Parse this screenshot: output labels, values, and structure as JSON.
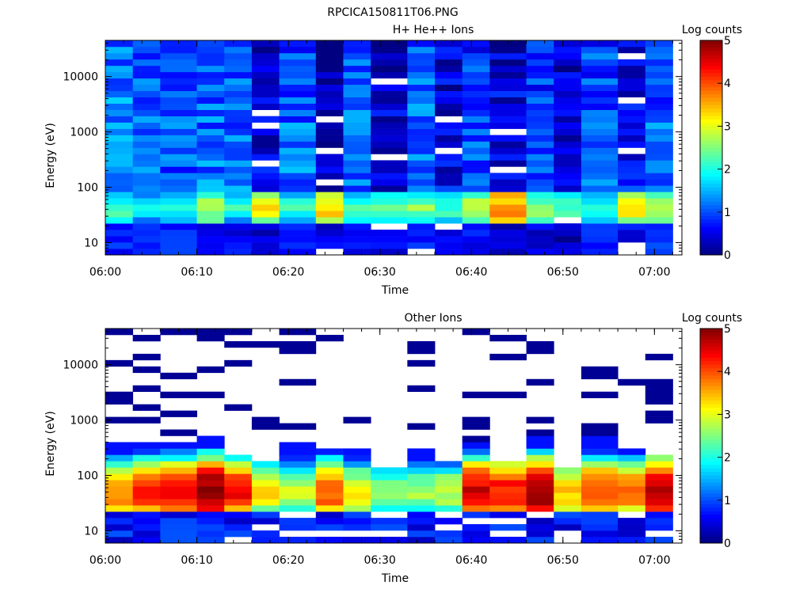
{
  "figure_title": "RPCICA150811T06.PNG",
  "chart_data": [
    {
      "type": "heatmap",
      "title": "H+ He++ Ions",
      "xlabel": "Time",
      "ylabel": "Energy (eV)",
      "x_ticks": [
        "06:00",
        "06:10",
        "06:20",
        "06:30",
        "06:40",
        "06:50",
        "07:00"
      ],
      "xlim_minutes": [
        0,
        63
      ],
      "y_scale": "log",
      "ylim": [
        6,
        45000
      ],
      "y_ticks": [
        {
          "value": 10,
          "label": "10"
        },
        {
          "value": 100,
          "label": "100"
        },
        {
          "value": 1000,
          "label": "1000"
        },
        {
          "value": 10000,
          "label": "10000"
        }
      ],
      "colorbar": {
        "label": "Log counts",
        "min": 0,
        "max": 5,
        "ticks": [
          "0",
          "1",
          "2",
          "3",
          "4",
          "5"
        ],
        "colormap": "jet"
      },
      "columns": [
        {
          "start": "06:00",
          "end": "06:03",
          "profile": {
            "low": 0.8,
            "mid": 2.3,
            "hi": 1.4
          },
          "zero_bins": []
        },
        {
          "start": "06:03",
          "end": "06:06",
          "profile": {
            "low": 0.9,
            "mid": 1.8,
            "hi": 1.3
          },
          "zero_bins": []
        },
        {
          "start": "06:06",
          "end": "06:10",
          "profile": {
            "low": 0.8,
            "mid": 2.0,
            "hi": 1.1
          },
          "zero_bins": []
        },
        {
          "start": "06:10",
          "end": "06:13",
          "profile": {
            "low": 0.5,
            "mid": 2.8,
            "hi": 1.2
          },
          "zero_bins": []
        },
        {
          "start": "06:13",
          "end": "06:16",
          "profile": {
            "low": 0.6,
            "mid": 2.0,
            "hi": 1.2
          },
          "zero_bins": []
        },
        {
          "start": "06:16",
          "end": "06:19",
          "profile": {
            "low": 0.4,
            "mid": 3.1,
            "hi": 0.5
          },
          "zero_bins": [
            300,
            1400,
            2100
          ]
        },
        {
          "start": "06:19",
          "end": "06:23",
          "profile": {
            "low": 0.6,
            "mid": 2.2,
            "hi": 1.2
          },
          "zero_bins": []
        },
        {
          "start": "06:23",
          "end": "06:26",
          "profile": {
            "low": 0.5,
            "mid": 3.4,
            "hi": 0.4
          },
          "zero_bins": [
            7,
            110,
            430,
            1750
          ]
        },
        {
          "start": "06:26",
          "end": "06:29",
          "profile": {
            "low": 0.6,
            "mid": 2.1,
            "hi": 1.2
          },
          "zero_bins": []
        },
        {
          "start": "06:29",
          "end": "06:33",
          "profile": {
            "low": 0.5,
            "mid": 2.4,
            "hi": 0.5
          },
          "zero_bins": [
            18,
            350,
            8500
          ]
        },
        {
          "start": "06:33",
          "end": "06:36",
          "profile": {
            "low": 0.8,
            "mid": 2.6,
            "hi": 1.2
          },
          "zero_bins": [
            7
          ]
        },
        {
          "start": "06:36",
          "end": "06:39",
          "profile": {
            "low": 0.5,
            "mid": 2.2,
            "hi": 0.6
          },
          "zero_bins": [
            18,
            430,
            1550
          ]
        },
        {
          "start": "06:39",
          "end": "06:42",
          "profile": {
            "low": 0.6,
            "mid": 2.9,
            "hi": 1.0
          },
          "zero_bins": []
        },
        {
          "start": "06:42",
          "end": "06:46",
          "profile": {
            "low": 0.3,
            "mid": 3.8,
            "hi": 0.6
          },
          "zero_bins": [
            230,
            1100
          ]
        },
        {
          "start": "06:46",
          "end": "06:49",
          "profile": {
            "low": 0.5,
            "mid": 2.6,
            "hi": 1.0
          },
          "zero_bins": []
        },
        {
          "start": "06:49",
          "end": "06:52",
          "profile": {
            "low": 0.3,
            "mid": 2.3,
            "hi": 0.6
          },
          "zero_bins": [
            25
          ]
        },
        {
          "start": "06:52",
          "end": "06:56",
          "profile": {
            "low": 0.8,
            "mid": 2.2,
            "hi": 1.1
          },
          "zero_bins": []
        },
        {
          "start": "06:56",
          "end": "06:59",
          "profile": {
            "low": 0.6,
            "mid": 3.2,
            "hi": 0.7
          },
          "zero_bins": [
            7,
            10,
            400,
            4200,
            22000
          ]
        },
        {
          "start": "06:59",
          "end": "07:02",
          "profile": {
            "low": 0.8,
            "mid": 2.9,
            "hi": 1.2
          },
          "zero_bins": []
        }
      ]
    },
    {
      "type": "heatmap",
      "title": "Other Ions",
      "xlabel": "Time",
      "ylabel": "Energy (eV)",
      "x_ticks": [
        "06:00",
        "06:10",
        "06:20",
        "06:30",
        "06:40",
        "06:50",
        "07:00"
      ],
      "xlim_minutes": [
        0,
        63
      ],
      "y_scale": "log",
      "ylim": [
        6,
        45000
      ],
      "y_ticks": [
        {
          "value": 10,
          "label": "10"
        },
        {
          "value": 100,
          "label": "100"
        },
        {
          "value": 1000,
          "label": "1000"
        },
        {
          "value": 10000,
          "label": "10000"
        }
      ],
      "colorbar": {
        "label": "Log counts",
        "min": 0,
        "max": 5,
        "ticks": [
          "0",
          "1",
          "2",
          "3",
          "4",
          "5"
        ],
        "colormap": "jet"
      },
      "columns": [
        {
          "start": "06:00",
          "end": "06:03",
          "peak": 3.8,
          "top": 450,
          "sparse": [
            40000,
            12000,
            2800,
            2500,
            1000
          ]
        },
        {
          "start": "06:03",
          "end": "06:06",
          "peak": 4.2,
          "top": 400,
          "sparse": [
            30000,
            13000,
            7500,
            4000,
            1500,
            1000
          ]
        },
        {
          "start": "06:06",
          "end": "06:10",
          "peak": 4.4,
          "top": 450,
          "sparse": [
            35000,
            6500,
            2700,
            1200,
            580
          ]
        },
        {
          "start": "06:10",
          "end": "06:13",
          "peak": 5.0,
          "top": 480,
          "sparse": [
            36000,
            33000,
            8800,
            2900
          ]
        },
        {
          "start": "06:13",
          "end": "06:16",
          "peak": 4.3,
          "top": 220,
          "sparse": [
            38000,
            24000,
            10500,
            1500
          ]
        },
        {
          "start": "06:16",
          "end": "06:19",
          "peak": 3.2,
          "top": 170,
          "sparse": [
            24000,
            1000,
            780
          ]
        },
        {
          "start": "06:19",
          "end": "06:23",
          "peak": 2.9,
          "top": 420,
          "sparse": [
            40000,
            22000,
            19000,
            4500,
            730
          ]
        },
        {
          "start": "06:23",
          "end": "06:26",
          "peak": 4.0,
          "top": 320,
          "sparse": [
            31000
          ]
        },
        {
          "start": "06:26",
          "end": "06:29",
          "peak": 3.1,
          "top": 300,
          "sparse": [
            920
          ]
        },
        {
          "start": "06:29",
          "end": "06:33",
          "peak": 2.6,
          "top": 140,
          "sparse": []
        },
        {
          "start": "06:33",
          "end": "06:36",
          "peak": 2.7,
          "top": 320,
          "sparse": [
            23000,
            17000,
            10000,
            3300,
            700
          ]
        },
        {
          "start": "06:36",
          "end": "06:39",
          "peak": 2.8,
          "top": 170,
          "sparse": []
        },
        {
          "start": "06:39",
          "end": "06:42",
          "peak": 4.6,
          "top": 380,
          "sparse": [
            39000,
            2900,
            950,
            720,
            500
          ]
        },
        {
          "start": "06:42",
          "end": "06:46",
          "peak": 4.3,
          "top": 170,
          "sparse": [
            29000,
            15000,
            2900
          ]
        },
        {
          "start": "06:46",
          "end": "06:49",
          "peak": 4.9,
          "top": 460,
          "sparse": [
            21000,
            19000,
            4300,
            900,
            520,
            350
          ]
        },
        {
          "start": "06:49",
          "end": "06:52",
          "peak": 3.4,
          "top": 130,
          "sparse": []
        },
        {
          "start": "06:52",
          "end": "06:56",
          "peak": 4.1,
          "top": 470,
          "sparse": [
            9200,
            7000,
            2900,
            780,
            600
          ]
        },
        {
          "start": "06:56",
          "end": "06:59",
          "peak": 3.8,
          "top": 270,
          "sparse": [
            4300
          ]
        },
        {
          "start": "06:59",
          "end": "07:02",
          "peak": 4.8,
          "top": 240,
          "sparse": [
            15000,
            4500,
            3800,
            2700,
            2100,
            1300,
            1000
          ]
        }
      ]
    }
  ]
}
